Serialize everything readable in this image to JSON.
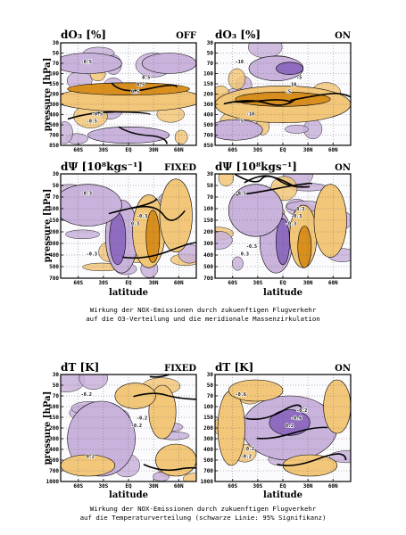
{
  "colors": {
    "warm": "#f2c77a",
    "warm_dark": "#d88f1e",
    "cool": "#c9b3dc",
    "cool_dark": "#8f6cc0",
    "frame": "#000000"
  },
  "chart_data": [
    {
      "type": "heatmap",
      "title": "dO₃ [%]",
      "condition": "OFF",
      "ylabel": "pressure [hPa]",
      "xlabel": "",
      "x_ticks": [
        "60S",
        "30S",
        "EQ",
        "30N",
        "60N"
      ],
      "y_ticks": [
        "30",
        "50",
        "70",
        "100",
        "150",
        "200",
        "300",
        "400",
        "500",
        "700",
        "850"
      ],
      "contour_labels": [
        "-0.5",
        "0.5",
        "-0.5",
        "0.5",
        "-0.5",
        "0.5"
      ]
    },
    {
      "type": "heatmap",
      "title": "dO₃ [%]",
      "condition": "ON",
      "ylabel": "",
      "xlabel": "",
      "x_ticks": [
        "60S",
        "30S",
        "EQ",
        "30N",
        "60N"
      ],
      "y_ticks": [
        "30",
        "50",
        "70",
        "100",
        "150",
        "200",
        "300",
        "400",
        "500",
        "700",
        "850"
      ],
      "contour_labels": [
        "-10",
        "-5",
        "5",
        "10",
        "-10",
        "-5"
      ]
    },
    {
      "type": "heatmap",
      "title": "dΨ [10⁸kgs⁻¹]",
      "condition": "FIXED",
      "ylabel": "pressure [hPa]",
      "xlabel": "latitude",
      "x_ticks": [
        "60S",
        "30S",
        "EQ",
        "30N",
        "60N"
      ],
      "y_ticks": [
        "30",
        "50",
        "70",
        "100",
        "150",
        "200",
        "300",
        "400",
        "500",
        "700"
      ],
      "contour_labels": [
        "-0.3",
        "0.3",
        "-0.3",
        "-0.3"
      ]
    },
    {
      "type": "heatmap",
      "title": "dΨ [10⁸kgs⁻¹]",
      "condition": "ON",
      "ylabel": "",
      "xlabel": "latitude",
      "x_ticks": [
        "60S",
        "30S",
        "EQ",
        "30N",
        "60N"
      ],
      "y_ticks": [
        "30",
        "50",
        "70",
        "100",
        "150",
        "200",
        "300",
        "400",
        "500",
        "700"
      ],
      "contour_labels": [
        "-0.5",
        "-0.3",
        "0.3",
        "-0.3",
        "-0.5",
        "0.3"
      ]
    },
    {
      "type": "heatmap",
      "title": "dT [K]",
      "condition": "FIXED",
      "ylabel": "pressure [hPa]",
      "xlabel": "latitude",
      "x_ticks": [
        "60S",
        "30S",
        "EQ",
        "30N",
        "60N"
      ],
      "y_ticks": [
        "30",
        "50",
        "70",
        "100",
        "150",
        "200",
        "300",
        "400",
        "500",
        "700",
        "1000"
      ],
      "contour_labels": [
        "-0.2",
        "-0.2",
        "0.2",
        "-0.2"
      ]
    },
    {
      "type": "heatmap",
      "title": "dT [K]",
      "condition": "ON",
      "ylabel": "",
      "xlabel": "latitude",
      "x_ticks": [
        "60S",
        "30S",
        "EQ",
        "30N",
        "60N"
      ],
      "y_ticks": [
        "30",
        "50",
        "70",
        "100",
        "150",
        "200",
        "300",
        "400",
        "500",
        "700",
        "1000"
      ],
      "contour_labels": [
        "-0.6",
        "0.2",
        "-0.2",
        "-0.6",
        "0.2",
        "-0.2"
      ]
    }
  ],
  "captions": {
    "top": {
      "line1": "Wirkung der NOX-Emissionen durch zukuenftigen Flugverkehr",
      "line2": "auf die O3-Verteilung und die meridionale Massenzirkulation"
    },
    "bottom": {
      "line1": "Wirkung der NOX-Emissionen durch zukuenftigen Flugverkehr",
      "line2": "auf die Temperaturverteilung (schwarze Linie: 95% Signifikanz)"
    }
  }
}
